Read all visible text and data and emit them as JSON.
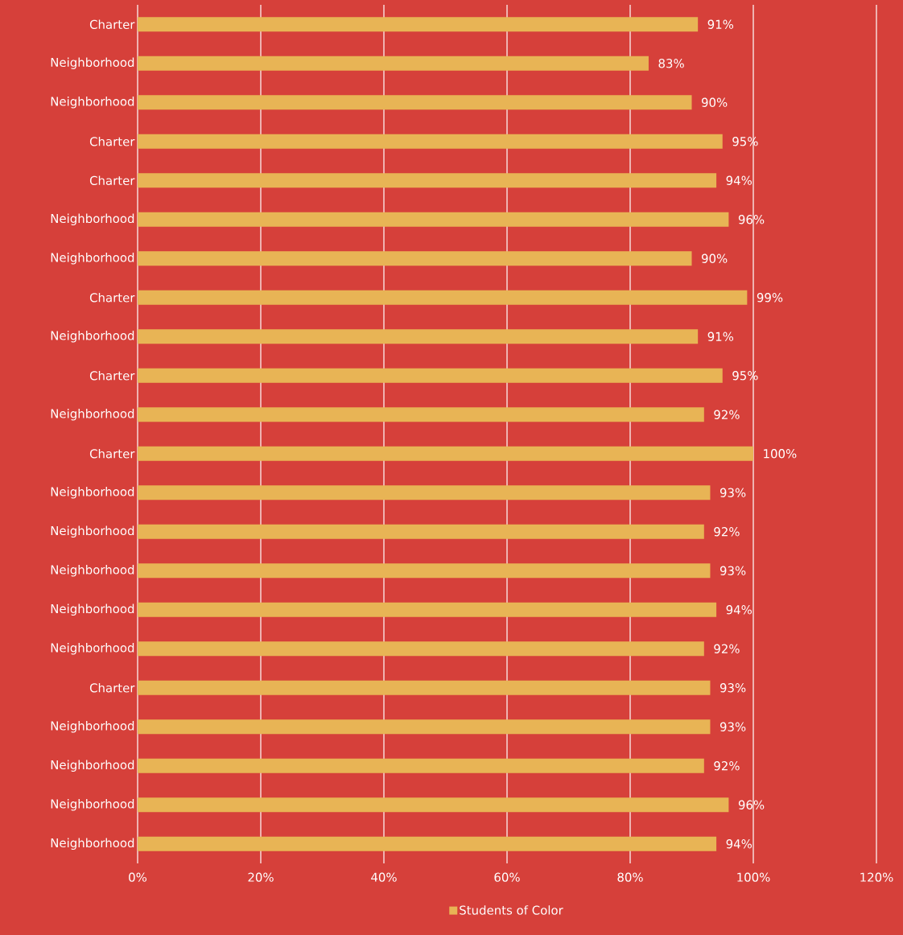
{
  "chart_data": {
    "type": "bar",
    "orientation": "horizontal",
    "categories": [
      "Charter",
      "Neighborhood",
      "Neighborhood",
      "Charter",
      "Charter",
      "Neighborhood",
      "Neighborhood",
      "Charter",
      "Neighborhood",
      "Charter",
      "Neighborhood",
      "Charter",
      "Neighborhood",
      "Neighborhood",
      "Neighborhood",
      "Neighborhood",
      "Neighborhood",
      "Charter",
      "Neighborhood",
      "Neighborhood",
      "Neighborhood",
      "Neighborhood"
    ],
    "series": [
      {
        "name": "Students of Color",
        "color": "#e8b455",
        "values": [
          91,
          83,
          90,
          95,
          94,
          96,
          90,
          99,
          91,
          95,
          92,
          100,
          93,
          92,
          93,
          94,
          92,
          93,
          93,
          92,
          96,
          94
        ],
        "value_labels": [
          "91%",
          "83%",
          "90%",
          "95%",
          "94%",
          "96%",
          "90%",
          "99%",
          "91%",
          "95%",
          "92%",
          "100%",
          "93%",
          "92%",
          "93%",
          "94%",
          "92%",
          "93%",
          "93%",
          "92%",
          "96%",
          "94%"
        ]
      }
    ],
    "xlim": [
      0,
      120
    ],
    "xticks": [
      {
        "value": 0,
        "label": "0%"
      },
      {
        "value": 20,
        "label": "20%"
      },
      {
        "value": 40,
        "label": "40%"
      },
      {
        "value": 60,
        "label": "60%"
      },
      {
        "value": 80,
        "label": "80%"
      },
      {
        "value": 100,
        "label": "100%"
      },
      {
        "value": 120,
        "label": "120%"
      }
    ],
    "grid": "x",
    "legend": "bottom"
  }
}
